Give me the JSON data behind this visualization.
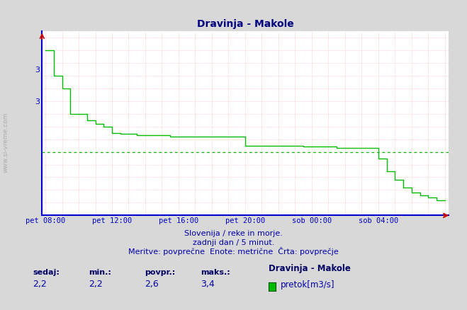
{
  "title": "Dravinja - Makole",
  "title_color": "#000080",
  "bg_color": "#d8d8d8",
  "plot_bg_color": "#ffffff",
  "grid_color": "#ffaaaa",
  "line_color": "#00bb00",
  "avg_line_color": "#00bb00",
  "axis_color": "#0000cc",
  "x_labels": [
    "pet 08:00",
    "pet 12:00",
    "pet 16:00",
    "pet 20:00",
    "sob 00:00",
    "sob 04:00"
  ],
  "x_tick_pos": [
    0,
    4,
    8,
    12,
    16,
    20
  ],
  "y_min": 2.1,
  "y_max": 3.55,
  "y_tick_vals": [
    3.0,
    3.0
  ],
  "y_tick_labels": [
    "3",
    "3"
  ],
  "avg_value": 2.6,
  "sedaj": "2,2",
  "min_val": "2,2",
  "povpr": "2,6",
  "maks": "3,4",
  "subtitle1": "Slovenija / reke in morje.",
  "subtitle2": "zadnji dan / 5 minut.",
  "subtitle3": "Meritve: povprečne  Enote: metrične  Črta: povprečje",
  "legend_station": "Dravinja - Makole",
  "legend_label": "pretok[m3/s]",
  "step_times": [
    0.0,
    0.083,
    0.5,
    0.583,
    1.0,
    1.083,
    1.5,
    1.583,
    2.0,
    2.083,
    2.5,
    2.583,
    3.0,
    3.083,
    3.5,
    3.583,
    4.0,
    4.083,
    4.5,
    4.583,
    5.0,
    5.083,
    5.5,
    5.583,
    6.0,
    6.083,
    6.5,
    6.583,
    7.0,
    7.083,
    7.5,
    7.583,
    8.0,
    8.5,
    9.0,
    9.5,
    10.0,
    10.5,
    11.0,
    11.5,
    12.0,
    12.083,
    12.5,
    12.583,
    13.0,
    13.5,
    14.0,
    14.5,
    15.0,
    15.083,
    15.5,
    15.583,
    16.0,
    16.5,
    17.0,
    17.083,
    17.5,
    18.0,
    18.5,
    19.0,
    19.5,
    20.0,
    20.5,
    21.0,
    21.5,
    22.0,
    22.5,
    23.0,
    23.5,
    24.0
  ],
  "step_values": [
    3.4,
    3.4,
    3.2,
    3.2,
    3.1,
    3.1,
    2.9,
    2.9,
    2.9,
    2.9,
    2.85,
    2.85,
    2.82,
    2.82,
    2.8,
    2.8,
    2.75,
    2.75,
    2.74,
    2.74,
    2.74,
    2.74,
    2.73,
    2.73,
    2.73,
    2.73,
    2.73,
    2.73,
    2.73,
    2.73,
    2.72,
    2.72,
    2.72,
    2.72,
    2.72,
    2.72,
    2.72,
    2.72,
    2.72,
    2.72,
    2.65,
    2.65,
    2.65,
    2.65,
    2.65,
    2.65,
    2.65,
    2.65,
    2.65,
    2.65,
    2.64,
    2.64,
    2.64,
    2.64,
    2.64,
    2.64,
    2.63,
    2.63,
    2.63,
    2.63,
    2.63,
    2.55,
    2.45,
    2.38,
    2.32,
    2.28,
    2.26,
    2.24,
    2.22,
    2.22
  ]
}
